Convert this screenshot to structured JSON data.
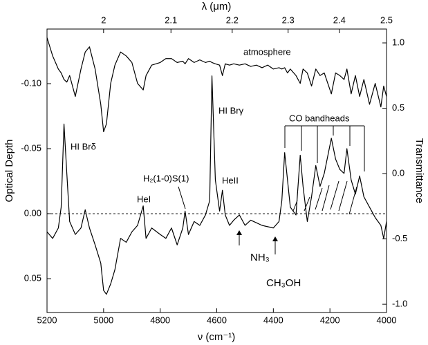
{
  "chart_data": {
    "type": "line",
    "xlabel": "ν (cm⁻¹)",
    "ylabel": "Optical Depth",
    "y2label": "Transmittance",
    "top_xlabel": "λ (μm)",
    "xlim": [
      5200,
      4000
    ],
    "xticks": [
      5200,
      5000,
      4800,
      4600,
      4400,
      4200,
      4000
    ],
    "top_xticks": [
      2,
      2.1,
      2.2,
      2.3,
      2.4,
      2.5
    ],
    "ylim": [
      0.076,
      -0.142
    ],
    "yticks": [
      {
        "value": -0.1,
        "label": "-0.10"
      },
      {
        "value": -0.05,
        "label": "-0.05"
      },
      {
        "value": 0,
        "label": "0.00"
      },
      {
        "value": 0.05,
        "label": "0.05"
      }
    ],
    "y2lim": [
      -1.063,
      1.106
    ],
    "y2ticks": [
      {
        "value": 1,
        "label": "1.0"
      },
      0.5,
      {
        "value": 0,
        "label": "0.0"
      },
      -0.5,
      {
        "value": -1,
        "label": "-1.0"
      }
    ],
    "zero_line": true,
    "x": [
      5200,
      5180,
      5160,
      5150,
      5140,
      5130,
      5120,
      5100,
      5080,
      5065,
      5050,
      5030,
      5010,
      5000,
      4990,
      4975,
      4960,
      4940,
      4920,
      4900,
      4880,
      4860,
      4850,
      4830,
      4800,
      4780,
      4760,
      4740,
      4720,
      4712,
      4700,
      4680,
      4660,
      4640,
      4625,
      4617,
      4605,
      4590,
      4580,
      4570,
      4555,
      4540,
      4520,
      4500,
      4480,
      4460,
      4440,
      4420,
      4400,
      4380,
      4370,
      4360,
      4350,
      4340,
      4320,
      4305,
      4295,
      4280,
      4265,
      4250,
      4235,
      4220,
      4195,
      4180,
      4165,
      4150,
      4140,
      4125,
      4110,
      4095,
      4080,
      4060,
      4040,
      4020,
      4010,
      4000
    ],
    "series": [
      {
        "name": "atmosphere",
        "axis": "y2",
        "color": "#000000",
        "values": [
          1.04,
          0.9,
          0.8,
          0.77,
          0.72,
          0.7,
          0.75,
          0.59,
          0.8,
          0.93,
          0.97,
          0.8,
          0.53,
          0.32,
          0.38,
          0.69,
          0.83,
          0.93,
          0.9,
          0.85,
          0.69,
          0.64,
          0.75,
          0.83,
          0.85,
          0.88,
          0.88,
          0.85,
          0.86,
          0.84,
          0.88,
          0.85,
          0.87,
          0.85,
          0.86,
          0.85,
          0.84,
          0.83,
          0.75,
          0.84,
          0.83,
          0.84,
          0.83,
          0.84,
          0.82,
          0.83,
          0.81,
          0.83,
          0.8,
          0.81,
          0.8,
          0.81,
          0.77,
          0.8,
          0.75,
          0.69,
          0.8,
          0.77,
          0.67,
          0.8,
          0.75,
          0.77,
          0.61,
          0.77,
          0.75,
          0.72,
          0.8,
          0.61,
          0.75,
          0.59,
          0.72,
          0.53,
          0.69,
          0.51,
          0.67,
          0.59
        ]
      },
      {
        "axis": "y",
        "color": "#000000",
        "values": [
          0.014,
          0.019,
          0.011,
          -0.005,
          -0.069,
          -0.031,
          0.006,
          0.016,
          0.011,
          -0.003,
          0.011,
          0.024,
          0.038,
          0.059,
          0.062,
          0.054,
          0.043,
          0.019,
          0.022,
          0.014,
          0.009,
          -0.006,
          0.019,
          0.011,
          0.016,
          0.019,
          0.011,
          0.024,
          0.011,
          -0.002,
          0.016,
          0.006,
          0.009,
          0.001,
          -0.01,
          -0.106,
          -0.026,
          -0.002,
          -0.018,
          0.001,
          0.009,
          0.005,
          0.001,
          0.009,
          0.005,
          0.007,
          0.009,
          0.01,
          0.011,
          0.006,
          -0.01,
          -0.047,
          -0.026,
          -0.005,
          0.001,
          -0.045,
          -0.021,
          0.006,
          -0.013,
          -0.037,
          -0.021,
          -0.031,
          -0.058,
          -0.042,
          -0.034,
          -0.031,
          -0.05,
          -0.026,
          -0.015,
          -0.029,
          -0.013,
          -0.005,
          0.003,
          0.009,
          0.019,
          0.006
        ]
      }
    ],
    "annotations": [
      "HI Brδ",
      "HeI",
      "H₂(1-0)S(1)",
      "HI Brγ",
      "HeII",
      "CO bandheads",
      "NH₃",
      "CH₃OH"
    ]
  }
}
